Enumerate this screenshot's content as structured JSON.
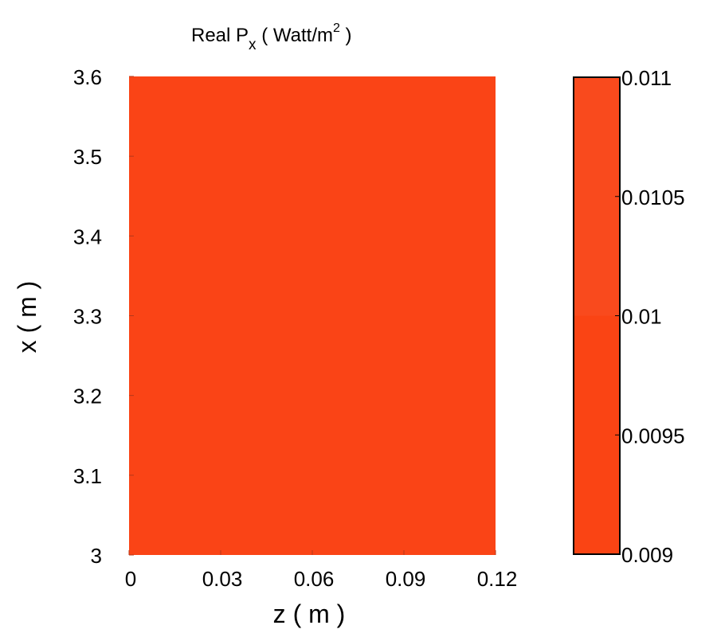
{
  "chart_data": {
    "type": "heatmap",
    "title": {
      "main": "Real P",
      "subscript": "x",
      "units_open": " ( Watt/m",
      "superscript": "2",
      "units_close": " )"
    },
    "xlabel": "z ( m )",
    "ylabel": "x ( m )",
    "x_range": [
      0,
      0.12
    ],
    "y_range": [
      3,
      3.6
    ],
    "x_ticks": [
      "0",
      "0.03",
      "0.06",
      "0.09",
      "0.12"
    ],
    "y_ticks": [
      "3",
      "3.1",
      "3.2",
      "3.3",
      "3.4",
      "3.5",
      "3.6"
    ],
    "field_value": 0.0101,
    "colorbar": {
      "range": [
        0.009,
        0.011
      ],
      "ticks": [
        "0.009",
        "0.0095",
        "0.01",
        "0.0105",
        "0.011"
      ],
      "bands": [
        {
          "from": 0.009,
          "to": 0.01,
          "color": "#fa4414"
        },
        {
          "from": 0.01,
          "to": 0.011,
          "color": "#f94a1d"
        }
      ]
    },
    "field_color": "#fa4416"
  }
}
